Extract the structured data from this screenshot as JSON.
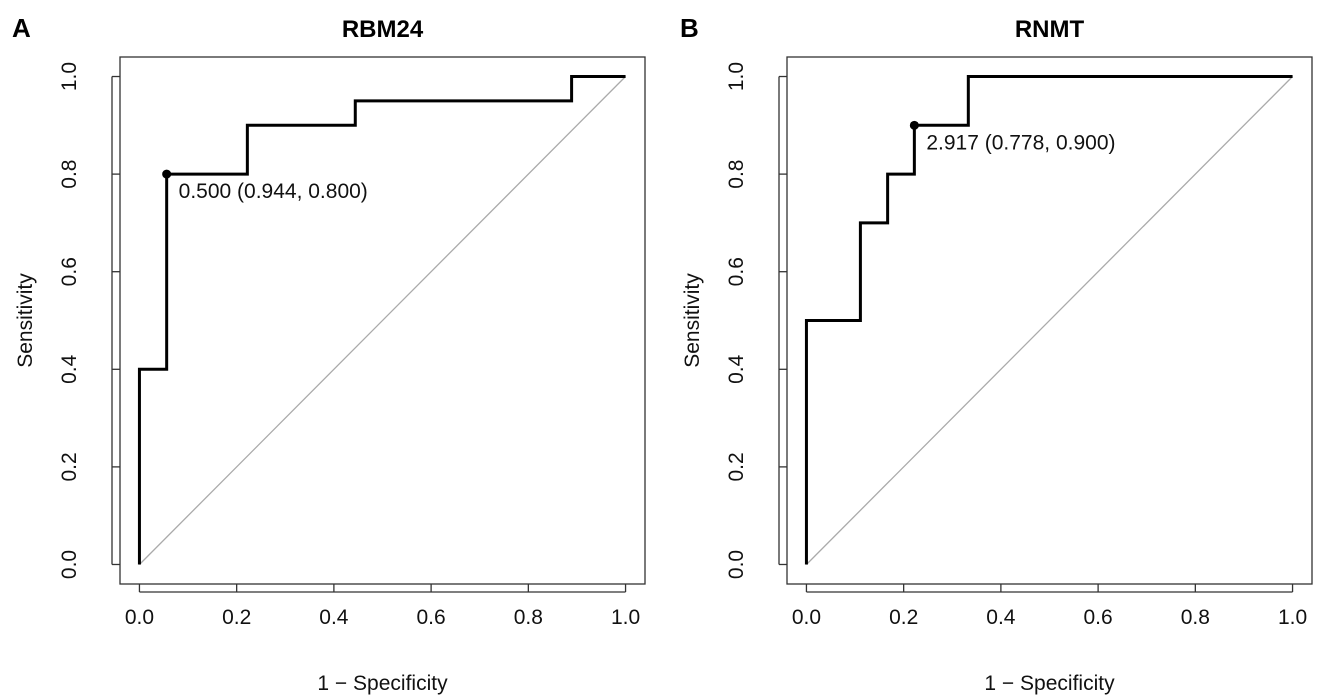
{
  "chart_data": [
    {
      "type": "line",
      "panel_label": "A",
      "title": "RBM24",
      "xlabel": "1 − Specificity",
      "ylabel": "Sensitivity",
      "xlim": [
        -0.04,
        1.04
      ],
      "ylim": [
        -0.04,
        1.04
      ],
      "xticks": [
        "0.0",
        "0.2",
        "0.4",
        "0.6",
        "0.8",
        "1.0"
      ],
      "yticks": [
        "0.0",
        "0.2",
        "0.4",
        "0.6",
        "0.8",
        "1.0"
      ],
      "grid": false,
      "series": [
        {
          "x": [
            0,
            0,
            0.056,
            0.056,
            0.222,
            0.222,
            0.444,
            0.444,
            0.889,
            0.889,
            1.0
          ],
          "y": [
            0,
            0.4,
            0.4,
            0.8,
            0.8,
            0.9,
            0.9,
            0.95,
            0.95,
            1.0,
            1.0
          ]
        }
      ],
      "reference_line": [
        [
          0,
          0
        ],
        [
          1,
          1
        ]
      ],
      "point": {
        "x": 0.056,
        "y": 0.8,
        "label": "0.500 (0.944, 0.800)"
      },
      "colors": {
        "roc": "#000000",
        "diagonal": "#aaaaaa"
      }
    },
    {
      "type": "line",
      "panel_label": "B",
      "title": "RNMT",
      "xlabel": "1 − Specificity",
      "ylabel": "Sensitivity",
      "xlim": [
        -0.04,
        1.04
      ],
      "ylim": [
        -0.04,
        1.04
      ],
      "xticks": [
        "0.0",
        "0.2",
        "0.4",
        "0.6",
        "0.8",
        "1.0"
      ],
      "yticks": [
        "0.0",
        "0.2",
        "0.4",
        "0.6",
        "0.8",
        "1.0"
      ],
      "grid": false,
      "series": [
        {
          "x": [
            0,
            0,
            0.111,
            0.111,
            0.167,
            0.167,
            0.222,
            0.222,
            0.333,
            0.333,
            1.0
          ],
          "y": [
            0,
            0.5,
            0.5,
            0.7,
            0.7,
            0.8,
            0.8,
            0.9,
            0.9,
            1.0,
            1.0
          ]
        }
      ],
      "reference_line": [
        [
          0,
          0
        ],
        [
          1,
          1
        ]
      ],
      "point": {
        "x": 0.222,
        "y": 0.9,
        "label": "2.917 (0.778, 0.900)"
      },
      "colors": {
        "roc": "#000000",
        "diagonal": "#aaaaaa"
      }
    }
  ]
}
